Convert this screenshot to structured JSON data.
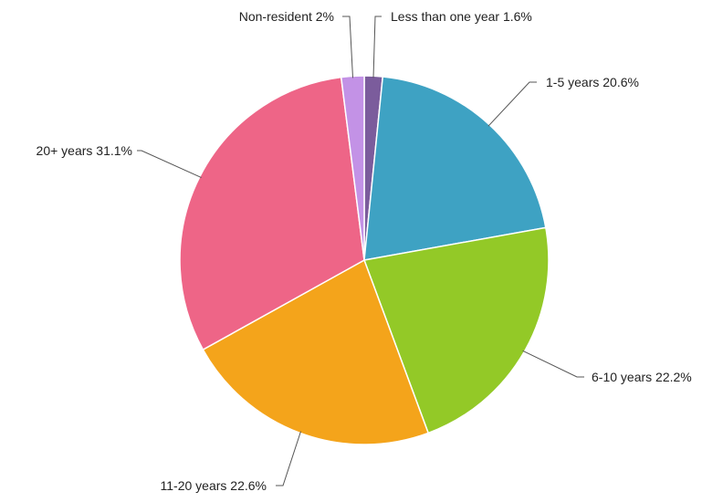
{
  "chart_data": {
    "type": "pie",
    "title": "",
    "legend": "none",
    "series": [
      {
        "slices": [
          {
            "label": "Less than one year",
            "value": 1.6,
            "display": "1.6%",
            "color": "#7b5c9c"
          },
          {
            "label": "1-5 years",
            "value": 20.6,
            "display": "20.6%",
            "color": "#3ea2c3"
          },
          {
            "label": "6-10 years",
            "value": 22.2,
            "display": "22.2%",
            "color": "#93c927"
          },
          {
            "label": "11-20 years",
            "value": 22.6,
            "display": "22.6%",
            "color": "#f4a41b"
          },
          {
            "label": "20+ years",
            "value": 31.1,
            "display": "31.1%",
            "color": "#ee6587"
          },
          {
            "label": "Non-resident",
            "value": 2,
            "display": "2%",
            "color": "#c392e6"
          }
        ]
      }
    ]
  }
}
